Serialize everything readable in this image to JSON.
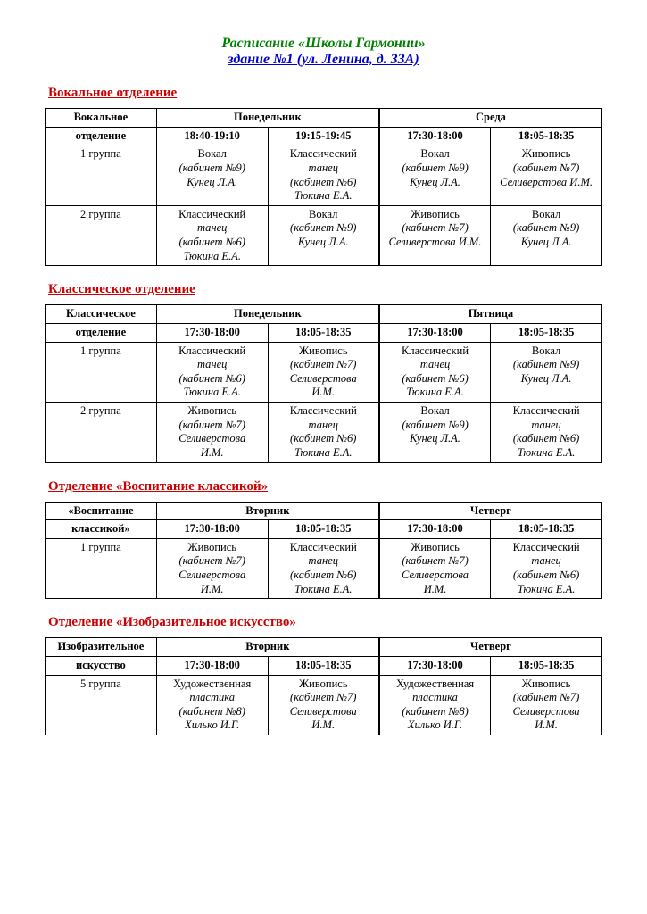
{
  "title": {
    "line1": "Расписание «Школы Гармонии»",
    "line2": "здание №1 (ул. Ленина, д. 33А)"
  },
  "colors": {
    "title_green": "#008000",
    "title_blue": "#0000cc",
    "section_red": "#cc0000",
    "border": "#000000",
    "background": "#ffffff"
  },
  "sections": [
    {
      "heading": "Вокальное отделение",
      "dept_header": [
        "Вокальное",
        "отделение"
      ],
      "day1": "Понедельник",
      "day2": "Среда",
      "time1a": "18:40-19:10",
      "time1b": "19:15-19:45",
      "time2a": "17:30-18:00",
      "time2b": "18:05-18:35",
      "rows": [
        {
          "label": "1 группа",
          "c1": [
            "Вокал",
            "(кабинет №9)",
            "Кунец Л.А."
          ],
          "c2": [
            "Классический",
            "танец",
            "(кабинет №6)",
            "Тюкина Е.А."
          ],
          "c3": [
            "Вокал",
            "(кабинет №9)",
            "Кунец Л.А."
          ],
          "c4": [
            "Живопись",
            "(кабинет №7)",
            "Селиверстова И.М."
          ]
        },
        {
          "label": "2 группа",
          "c1": [
            "Классический",
            "танец",
            "(кабинет №6)",
            "Тюкина Е.А."
          ],
          "c2": [
            "Вокал",
            "(кабинет №9)",
            "Кунец Л.А."
          ],
          "c3": [
            "Живопись",
            "(кабинет №7)",
            "Селиверстова И.М."
          ],
          "c4": [
            "Вокал",
            "(кабинет №9)",
            "Кунец Л.А."
          ]
        }
      ]
    },
    {
      "heading": "Классическое отделение",
      "dept_header": [
        "Классическое",
        "отделение"
      ],
      "day1": "Понедельник",
      "day2": "Пятница",
      "time1a": "17:30-18:00",
      "time1b": "18:05-18:35",
      "time2a": "17:30-18:00",
      "time2b": "18:05-18:35",
      "rows": [
        {
          "label": "1 группа",
          "c1": [
            "Классический",
            "танец",
            "(кабинет №6)",
            "Тюкина Е.А."
          ],
          "c2": [
            "Живопись",
            "(кабинет №7)",
            "Селиверстова",
            "И.М."
          ],
          "c3": [
            "Классический",
            "танец",
            "(кабинет №6)",
            "Тюкина Е.А."
          ],
          "c4": [
            "Вокал",
            "(кабинет №9)",
            "Кунец Л.А."
          ]
        },
        {
          "label": "2 группа",
          "c1": [
            "Живопись",
            "(кабинет №7)",
            "Селиверстова",
            "И.М."
          ],
          "c2": [
            "Классический",
            "танец",
            "(кабинет №6)",
            "Тюкина Е.А."
          ],
          "c3": [
            "Вокал",
            "(кабинет №9)",
            "Кунец Л.А."
          ],
          "c4": [
            "Классический",
            "танец",
            "(кабинет №6)",
            "Тюкина Е.А."
          ]
        }
      ]
    },
    {
      "heading": "Отделение «Воспитание классикой»",
      "dept_header": [
        "«Воспитание",
        "классикой»"
      ],
      "day1": "Вторник",
      "day2": "Четверг",
      "time1a": "17:30-18:00",
      "time1b": "18:05-18:35",
      "time2a": "17:30-18:00",
      "time2b": "18:05-18:35",
      "rows": [
        {
          "label": "1 группа",
          "c1": [
            "Живопись",
            "(кабинет №7)",
            "Селиверстова",
            "И.М."
          ],
          "c2": [
            "Классический",
            "танец",
            "(кабинет №6)",
            "Тюкина Е.А."
          ],
          "c3": [
            "Живопись",
            "(кабинет №7)",
            "Селиверстова",
            "И.М."
          ],
          "c4": [
            "Классический",
            "танец",
            "(кабинет №6)",
            "Тюкина Е.А."
          ]
        }
      ]
    },
    {
      "heading": "Отделение «Изобразительное искусство»",
      "dept_header": [
        "Изобразительное",
        "искусство"
      ],
      "day1": "Вторник",
      "day2": "Четверг",
      "time1a": "17:30-18:00",
      "time1b": "18:05-18:35",
      "time2a": "17:30-18:00",
      "time2b": "18:05-18:35",
      "rows": [
        {
          "label": "5 группа",
          "c1": [
            "Художественная",
            "пластика",
            "(кабинет №8)",
            "Хилько И.Г."
          ],
          "c2": [
            "Живопись",
            "(кабинет №7)",
            "Селиверстова",
            "И.М."
          ],
          "c3": [
            "Художественная",
            "пластика",
            "(кабинет №8)",
            "Хилько И.Г."
          ],
          "c4": [
            "Живопись",
            "(кабинет №7)",
            "Селиверстова",
            "И.М."
          ]
        }
      ]
    }
  ]
}
